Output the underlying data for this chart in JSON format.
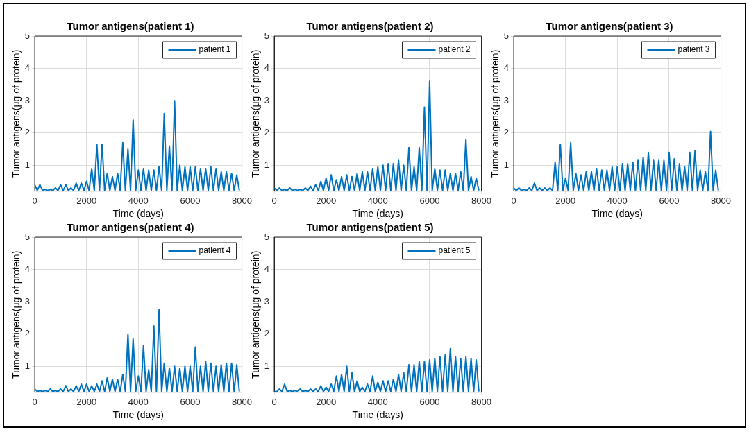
{
  "chart_data": [
    {
      "type": "line",
      "title": "Tumor antigens(patient 1)",
      "xlabel": "Time (days)",
      "ylabel": "Tumor antigens(μg of protein)",
      "xlim": [
        0,
        8000
      ],
      "xticks": [
        0,
        2000,
        4000,
        6000,
        8000
      ],
      "ylim": [
        0.2,
        5
      ],
      "yticks": [
        1,
        2,
        3,
        4,
        5
      ],
      "grid": true,
      "legend": "top right",
      "x": [
        0,
        100,
        200,
        300,
        400,
        500,
        600,
        700,
        800,
        900,
        1000,
        1100,
        1200,
        1300,
        1400,
        1500,
        1600,
        1700,
        1800,
        1900,
        2000,
        2100,
        2200,
        2300,
        2400,
        2500,
        2600,
        2700,
        2800,
        2900,
        3000,
        3100,
        3200,
        3300,
        3400,
        3500,
        3600,
        3700,
        3800,
        3900,
        4000,
        4100,
        4200,
        4300,
        4400,
        4500,
        4600,
        4700,
        4800,
        4900,
        5000,
        5100,
        5200,
        5300,
        5400,
        5500,
        5600,
        5700,
        5800,
        5900,
        6000,
        6100,
        6200,
        6300,
        6400,
        6500,
        6600,
        6700,
        6800,
        6900,
        7000,
        7100,
        7200,
        7300,
        7400,
        7500,
        7600,
        7700,
        7800,
        7900
      ],
      "series": [
        {
          "name": "patient 1",
          "color": "#0072bd",
          "values": [
            0.4,
            0.22,
            0.4,
            0.22,
            0.25,
            0.22,
            0.25,
            0.22,
            0.3,
            0.22,
            0.4,
            0.22,
            0.4,
            0.22,
            0.3,
            0.22,
            0.45,
            0.22,
            0.45,
            0.22,
            0.5,
            0.22,
            0.9,
            0.22,
            1.65,
            0.22,
            1.65,
            0.22,
            0.75,
            0.22,
            0.65,
            0.22,
            0.75,
            0.22,
            1.7,
            0.22,
            1.5,
            0.22,
            2.4,
            0.22,
            0.85,
            0.22,
            0.9,
            0.22,
            0.85,
            0.22,
            0.85,
            0.22,
            0.95,
            0.22,
            2.6,
            0.22,
            1.6,
            0.22,
            3.0,
            0.22,
            1.0,
            0.22,
            0.95,
            0.22,
            0.95,
            0.22,
            0.95,
            0.22,
            0.9,
            0.22,
            0.9,
            0.22,
            0.95,
            0.22,
            0.9,
            0.22,
            0.8,
            0.22,
            0.8,
            0.22,
            0.75,
            0.22,
            0.7,
            0.22
          ]
        }
      ]
    },
    {
      "type": "line",
      "title": "Tumor antigens(patient 2)",
      "xlabel": "Time (days)",
      "ylabel": "Tumor antigens(μg of protein)",
      "xlim": [
        0,
        8000
      ],
      "xticks": [
        0,
        2000,
        4000,
        6000,
        8000
      ],
      "ylim": [
        0.2,
        5
      ],
      "yticks": [
        1,
        2,
        3,
        4,
        5
      ],
      "grid": true,
      "legend": "top right",
      "x": [
        0,
        100,
        200,
        300,
        400,
        500,
        600,
        700,
        800,
        900,
        1000,
        1100,
        1200,
        1300,
        1400,
        1500,
        1600,
        1700,
        1800,
        1900,
        2000,
        2100,
        2200,
        2300,
        2400,
        2500,
        2600,
        2700,
        2800,
        2900,
        3000,
        3100,
        3200,
        3300,
        3400,
        3500,
        3600,
        3700,
        3800,
        3900,
        4000,
        4100,
        4200,
        4300,
        4400,
        4500,
        4600,
        4700,
        4800,
        4900,
        5000,
        5100,
        5200,
        5300,
        5400,
        5500,
        5600,
        5700,
        5800,
        5900,
        6000,
        6100,
        6200,
        6300,
        6400,
        6500,
        6600,
        6700,
        6800,
        6900,
        7000,
        7100,
        7200,
        7300,
        7400,
        7500,
        7600,
        7700,
        7800,
        7900
      ],
      "series": [
        {
          "name": "patient 2",
          "color": "#0072bd",
          "values": [
            0.3,
            0.22,
            0.3,
            0.22,
            0.25,
            0.22,
            0.3,
            0.22,
            0.25,
            0.22,
            0.25,
            0.22,
            0.3,
            0.22,
            0.35,
            0.22,
            0.4,
            0.22,
            0.5,
            0.22,
            0.6,
            0.22,
            0.7,
            0.22,
            0.55,
            0.22,
            0.65,
            0.22,
            0.7,
            0.22,
            0.65,
            0.22,
            0.75,
            0.22,
            0.8,
            0.22,
            0.8,
            0.22,
            0.9,
            0.22,
            0.95,
            0.22,
            1.0,
            0.22,
            1.05,
            0.22,
            1.05,
            0.22,
            1.15,
            0.22,
            1.0,
            0.22,
            1.55,
            0.22,
            0.95,
            0.22,
            1.55,
            0.22,
            2.8,
            0.22,
            3.6,
            0.22,
            0.9,
            0.22,
            0.85,
            0.22,
            0.85,
            0.22,
            0.75,
            0.22,
            0.75,
            0.22,
            0.8,
            0.22,
            1.8,
            0.22,
            0.65,
            0.22,
            0.6,
            0.22
          ]
        }
      ]
    },
    {
      "type": "line",
      "title": "Tumor antigens(patient 3)",
      "xlabel": "Time (days)",
      "ylabel": "Tumor antigens(μg of protein)",
      "xlim": [
        0,
        8000
      ],
      "xticks": [
        0,
        2000,
        4000,
        6000,
        8000
      ],
      "ylim": [
        0.2,
        5
      ],
      "yticks": [
        1,
        2,
        3,
        4,
        5
      ],
      "grid": true,
      "legend": "top right",
      "x": [
        0,
        100,
        200,
        300,
        400,
        500,
        600,
        700,
        800,
        900,
        1000,
        1100,
        1200,
        1300,
        1400,
        1500,
        1600,
        1700,
        1800,
        1900,
        2000,
        2100,
        2200,
        2300,
        2400,
        2500,
        2600,
        2700,
        2800,
        2900,
        3000,
        3100,
        3200,
        3300,
        3400,
        3500,
        3600,
        3700,
        3800,
        3900,
        4000,
        4100,
        4200,
        4300,
        4400,
        4500,
        4600,
        4700,
        4800,
        4900,
        5000,
        5100,
        5200,
        5300,
        5400,
        5500,
        5600,
        5700,
        5800,
        5900,
        6000,
        6100,
        6200,
        6300,
        6400,
        6500,
        6600,
        6700,
        6800,
        6900,
        7000,
        7100,
        7200,
        7300,
        7400,
        7500,
        7600,
        7700,
        7800,
        7900
      ],
      "series": [
        {
          "name": "patient 3",
          "color": "#0072bd",
          "values": [
            0.3,
            0.22,
            0.3,
            0.22,
            0.25,
            0.22,
            0.3,
            0.22,
            0.45,
            0.22,
            0.3,
            0.22,
            0.3,
            0.22,
            0.3,
            0.22,
            1.1,
            0.22,
            1.65,
            0.22,
            0.6,
            0.22,
            1.7,
            0.22,
            0.75,
            0.22,
            0.7,
            0.22,
            0.8,
            0.22,
            0.8,
            0.22,
            0.9,
            0.22,
            0.85,
            0.22,
            0.85,
            0.22,
            0.95,
            0.22,
            0.95,
            0.22,
            1.05,
            0.22,
            1.05,
            0.22,
            1.1,
            0.22,
            1.15,
            0.22,
            1.25,
            0.22,
            1.4,
            0.22,
            1.15,
            0.22,
            1.15,
            0.22,
            1.15,
            0.22,
            1.4,
            0.22,
            1.2,
            0.22,
            1.05,
            0.22,
            0.95,
            0.22,
            1.4,
            0.22,
            1.45,
            0.22,
            0.85,
            0.22,
            0.8,
            0.22,
            2.05,
            0.22,
            0.85,
            0.22
          ]
        }
      ]
    },
    {
      "type": "line",
      "title": "Tumor antigens(patient 4)",
      "xlabel": "Time (days)",
      "ylabel": "Tumor antigens(μg of protein)",
      "xlim": [
        0,
        8000
      ],
      "xticks": [
        0,
        2000,
        4000,
        6000,
        8000
      ],
      "ylim": [
        0.2,
        5
      ],
      "yticks": [
        1,
        2,
        3,
        4,
        5
      ],
      "grid": true,
      "legend": "top right",
      "x": [
        0,
        100,
        200,
        300,
        400,
        500,
        600,
        700,
        800,
        900,
        1000,
        1100,
        1200,
        1300,
        1400,
        1500,
        1600,
        1700,
        1800,
        1900,
        2000,
        2100,
        2200,
        2300,
        2400,
        2500,
        2600,
        2700,
        2800,
        2900,
        3000,
        3100,
        3200,
        3300,
        3400,
        3500,
        3600,
        3700,
        3800,
        3900,
        4000,
        4100,
        4200,
        4300,
        4400,
        4500,
        4600,
        4700,
        4800,
        4900,
        5000,
        5100,
        5200,
        5300,
        5400,
        5500,
        5600,
        5700,
        5800,
        5900,
        6000,
        6100,
        6200,
        6300,
        6400,
        6500,
        6600,
        6700,
        6800,
        6900,
        7000,
        7100,
        7200,
        7300,
        7400,
        7500,
        7600,
        7700,
        7800,
        7900
      ],
      "series": [
        {
          "name": "patient 4",
          "color": "#0072bd",
          "values": [
            0.3,
            0.22,
            0.25,
            0.22,
            0.25,
            0.22,
            0.3,
            0.22,
            0.25,
            0.22,
            0.3,
            0.22,
            0.4,
            0.22,
            0.3,
            0.22,
            0.4,
            0.22,
            0.45,
            0.22,
            0.45,
            0.22,
            0.4,
            0.22,
            0.45,
            0.22,
            0.55,
            0.22,
            0.65,
            0.22,
            0.6,
            0.22,
            0.6,
            0.22,
            0.75,
            0.22,
            2.0,
            0.22,
            1.85,
            0.22,
            0.7,
            0.22,
            1.65,
            0.22,
            0.9,
            0.22,
            2.25,
            0.22,
            2.75,
            0.22,
            1.1,
            0.22,
            0.95,
            0.22,
            1.0,
            0.22,
            0.95,
            0.22,
            1.0,
            0.22,
            1.0,
            0.22,
            1.6,
            0.22,
            1.0,
            0.22,
            1.15,
            0.22,
            1.1,
            0.22,
            1.0,
            0.22,
            1.05,
            0.22,
            1.1,
            0.22,
            1.1,
            0.22,
            1.05,
            0.22
          ]
        }
      ]
    },
    {
      "type": "line",
      "title": "Tumor antigens(patient 5)",
      "xlabel": "Time (days)",
      "ylabel": "Tumor antigens(μg of protein)",
      "xlim": [
        0,
        8000
      ],
      "xticks": [
        0,
        2000,
        4000,
        6000,
        8000
      ],
      "ylim": [
        0.2,
        5
      ],
      "yticks": [
        1,
        2,
        3,
        4,
        5
      ],
      "grid": true,
      "legend": "top right",
      "x": [
        0,
        100,
        200,
        300,
        400,
        500,
        600,
        700,
        800,
        900,
        1000,
        1100,
        1200,
        1300,
        1400,
        1500,
        1600,
        1700,
        1800,
        1900,
        2000,
        2100,
        2200,
        2300,
        2400,
        2500,
        2600,
        2700,
        2800,
        2900,
        3000,
        3100,
        3200,
        3300,
        3400,
        3500,
        3600,
        3700,
        3800,
        3900,
        4000,
        4100,
        4200,
        4300,
        4400,
        4500,
        4600,
        4700,
        4800,
        4900,
        5000,
        5100,
        5200,
        5300,
        5400,
        5500,
        5600,
        5700,
        5800,
        5900,
        6000,
        6100,
        6200,
        6300,
        6400,
        6500,
        6600,
        6700,
        6800,
        6900,
        7000,
        7100,
        7200,
        7300,
        7400,
        7500,
        7600,
        7700,
        7800,
        7900
      ],
      "series": [
        {
          "name": "patient 5",
          "color": "#0072bd",
          "values": [
            0.22,
            0.22,
            0.3,
            0.22,
            0.45,
            0.22,
            0.25,
            0.22,
            0.25,
            0.22,
            0.3,
            0.22,
            0.25,
            0.22,
            0.3,
            0.22,
            0.3,
            0.22,
            0.4,
            0.22,
            0.35,
            0.22,
            0.45,
            0.22,
            0.7,
            0.22,
            0.75,
            0.22,
            1.0,
            0.22,
            0.8,
            0.22,
            0.55,
            0.22,
            0.35,
            0.22,
            0.45,
            0.22,
            0.7,
            0.22,
            0.5,
            0.22,
            0.55,
            0.22,
            0.55,
            0.22,
            0.6,
            0.22,
            0.75,
            0.22,
            0.8,
            0.22,
            1.05,
            0.22,
            1.05,
            0.22,
            1.15,
            0.22,
            1.15,
            0.22,
            1.2,
            0.22,
            1.25,
            0.22,
            1.3,
            0.22,
            1.35,
            0.22,
            1.55,
            0.22,
            1.3,
            0.22,
            1.25,
            0.22,
            1.3,
            0.22,
            1.25,
            0.22,
            1.2,
            0.22
          ]
        }
      ]
    }
  ]
}
